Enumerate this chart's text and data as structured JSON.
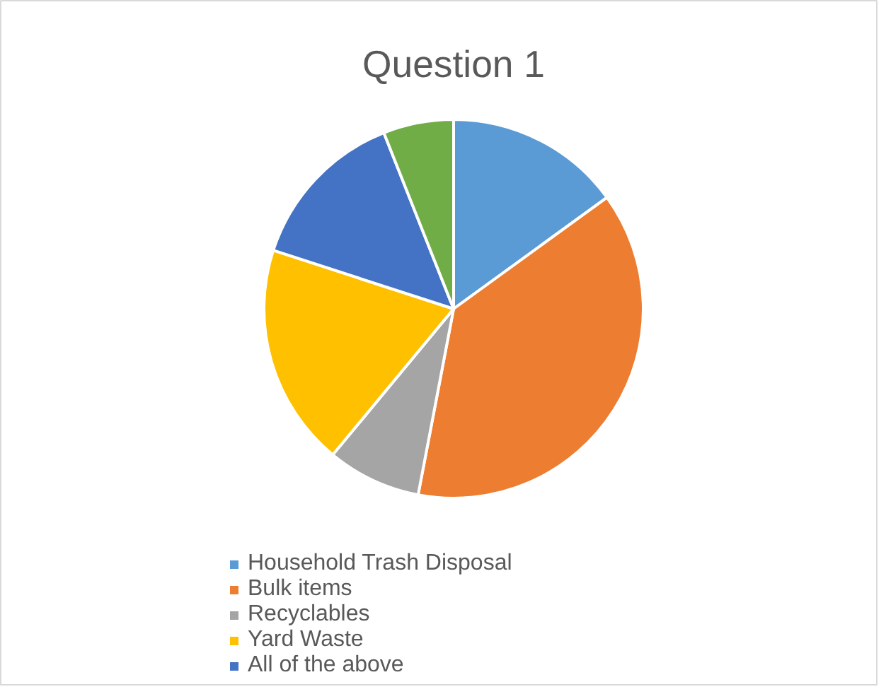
{
  "chart_data": {
    "type": "pie",
    "title": "Question 1",
    "categories": [
      "Household Trash Disposal",
      "Bulk items",
      "Recyclables",
      "Yard Waste",
      "All of the above",
      null
    ],
    "values": [
      15,
      38,
      8,
      19,
      14,
      6
    ],
    "colors": [
      "#5b9bd5",
      "#ed7d31",
      "#a5a5a5",
      "#ffc000",
      "#4472c4",
      "#70ad47"
    ],
    "legend": "bottom"
  }
}
